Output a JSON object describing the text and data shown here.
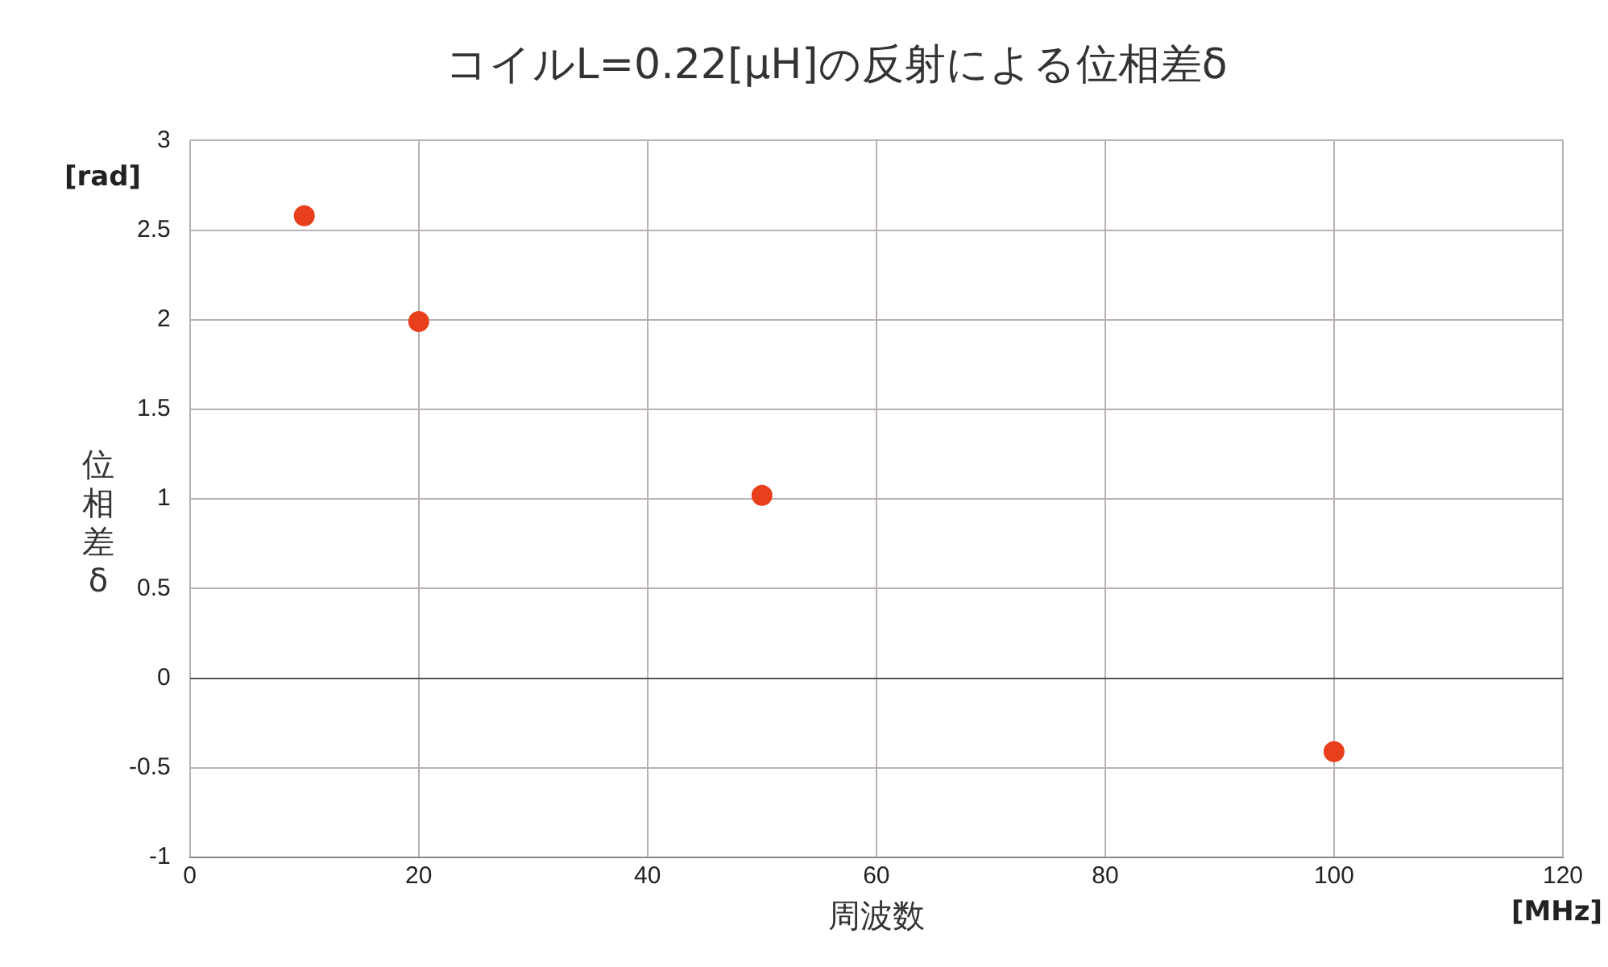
{
  "chart_data": {
    "type": "scatter",
    "title": "コイルL=0.22[μH]の反射による位相差δ",
    "xlabel": "周波数",
    "ylabel": "位相差δ",
    "annotations": [
      "[rad]",
      "[MHz]"
    ],
    "x": [
      10,
      20,
      50,
      100
    ],
    "series": [
      {
        "color": "#e8401c",
        "values": [
          2.58,
          1.99,
          1.02,
          -0.41
        ]
      }
    ],
    "xlim": [
      0,
      120
    ],
    "xticks": [
      0,
      20,
      40,
      60,
      80,
      100,
      120
    ],
    "ylim": [
      -1,
      3
    ],
    "yticks": [
      -1,
      -0.5,
      0,
      0.5,
      1,
      1.5,
      2,
      2.5,
      3
    ],
    "grid": true,
    "legend": false,
    "marker": "circle"
  }
}
